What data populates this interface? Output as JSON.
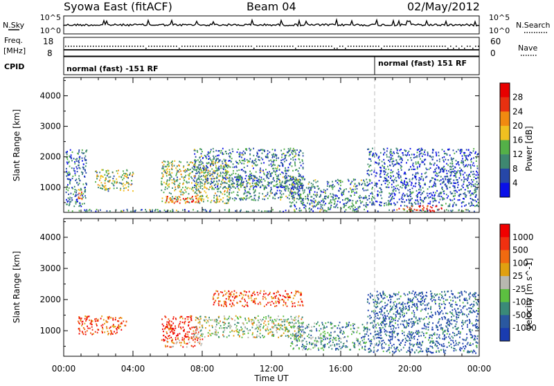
{
  "header": {
    "station": "Syowa East (fitACF)",
    "beam": "Beam 04",
    "date": "02/May/2012"
  },
  "strips": {
    "nsky_label": "N.Sky",
    "nsky_ticks": [
      "10^5",
      "10^0"
    ],
    "nsearch_label": "N.Search",
    "nsearch_ticks": [
      "10^5",
      "10^0"
    ],
    "freq_label": "Freq.",
    "freq_unit": "[MHz]",
    "freq_ticks": [
      "18",
      "8"
    ],
    "nave_label": "Nave",
    "nave_ticks": [
      "60",
      "0"
    ],
    "cpid_label": "CPID",
    "mode_1": "normal (fast) -151 RF",
    "mode_2": "normal (fast) 151 RF"
  },
  "chart_data": [
    {
      "type": "heatmap",
      "parameter": "power",
      "xlabel": "Time UT",
      "ylabel": "Slant Range [km]",
      "x_ticks": [
        "00:00",
        "04:00",
        "08:00",
        "12:00",
        "16:00",
        "20:00",
        "00:00"
      ],
      "xlim_hours": [
        0,
        24
      ],
      "y_ticks": [
        1000,
        2000,
        3000,
        4000
      ],
      "ylim_km": [
        180,
        4600
      ],
      "colorbar": {
        "label": "Power [dB]",
        "ticks": [
          4,
          8,
          12,
          16,
          20,
          24,
          28
        ],
        "range": [
          0,
          32
        ],
        "colors": [
          "#0a10e8",
          "#2647a8",
          "#3e8870",
          "#54b048",
          "#f0c020",
          "#f08a10",
          "#e83010",
          "#e80000"
        ]
      },
      "echo_regions": [
        {
          "t0": 0.1,
          "t1": 1.3,
          "r0": 400,
          "r1": 2300,
          "level": 0.25
        },
        {
          "t0": 0.8,
          "t1": 1.1,
          "r0": 600,
          "r1": 1150,
          "level": 0.6
        },
        {
          "t0": 1.8,
          "t1": 4.0,
          "r0": 900,
          "r1": 1600,
          "level": 0.45
        },
        {
          "t0": 5.6,
          "t1": 9.5,
          "r0": 500,
          "r1": 1900,
          "level": 0.45
        },
        {
          "t0": 5.8,
          "t1": 8.0,
          "r0": 500,
          "r1": 750,
          "level": 0.75
        },
        {
          "t0": 7.5,
          "t1": 13.8,
          "r0": 1000,
          "r1": 2300,
          "level": 0.3
        },
        {
          "t0": 9.5,
          "t1": 13.8,
          "r0": 600,
          "r1": 1400,
          "level": 0.3
        },
        {
          "t0": 13.0,
          "t1": 17.5,
          "r0": 300,
          "r1": 1300,
          "level": 0.3
        },
        {
          "t0": 17.5,
          "t1": 24.0,
          "r0": 400,
          "r1": 2300,
          "level": 0.2
        },
        {
          "t0": 19.2,
          "t1": 21.8,
          "r0": 220,
          "r1": 420,
          "level": 0.9
        },
        {
          "t0": 0.0,
          "t1": 24.0,
          "r0": 180,
          "r1": 300,
          "level": 0.3
        }
      ]
    },
    {
      "type": "heatmap",
      "parameter": "velocity",
      "xlabel": "Time UT",
      "ylabel": "Slant Range [km]",
      "x_ticks": [
        "00:00",
        "04:00",
        "08:00",
        "12:00",
        "16:00",
        "20:00",
        "00:00"
      ],
      "xlim_hours": [
        0,
        24
      ],
      "y_ticks": [
        1000,
        2000,
        3000,
        4000
      ],
      "ylim_km": [
        180,
        4600
      ],
      "colorbar": {
        "label": "Velocity [m s^-1]",
        "ticks": [
          "1000",
          "500",
          "100",
          "25",
          "-25",
          "-100",
          "-500",
          "-1000"
        ],
        "colors": [
          "#1a3cb0",
          "#2a58a0",
          "#3a8a78",
          "#5cc040",
          "#b8b8b0",
          "#e0a010",
          "#f06a10",
          "#f03010",
          "#f00000"
        ]
      },
      "echo_regions": [
        {
          "t0": 0.8,
          "t1": 3.6,
          "r0": 900,
          "r1": 1500,
          "level": 0.8
        },
        {
          "t0": 5.6,
          "t1": 7.8,
          "r0": 700,
          "r1": 1500,
          "level": 0.85
        },
        {
          "t0": 5.8,
          "t1": 8.0,
          "r0": 500,
          "r1": 800,
          "level": 0.7
        },
        {
          "t0": 7.5,
          "t1": 13.8,
          "r0": 800,
          "r1": 1500,
          "level": 0.45
        },
        {
          "t0": 8.5,
          "t1": 13.8,
          "r0": 1800,
          "r1": 2300,
          "level": 0.8
        },
        {
          "t0": 13.0,
          "t1": 17.5,
          "r0": 400,
          "r1": 1300,
          "level": 0.3
        },
        {
          "t0": 17.5,
          "t1": 24.0,
          "r0": 300,
          "r1": 2300,
          "level": 0.15
        }
      ]
    }
  ]
}
